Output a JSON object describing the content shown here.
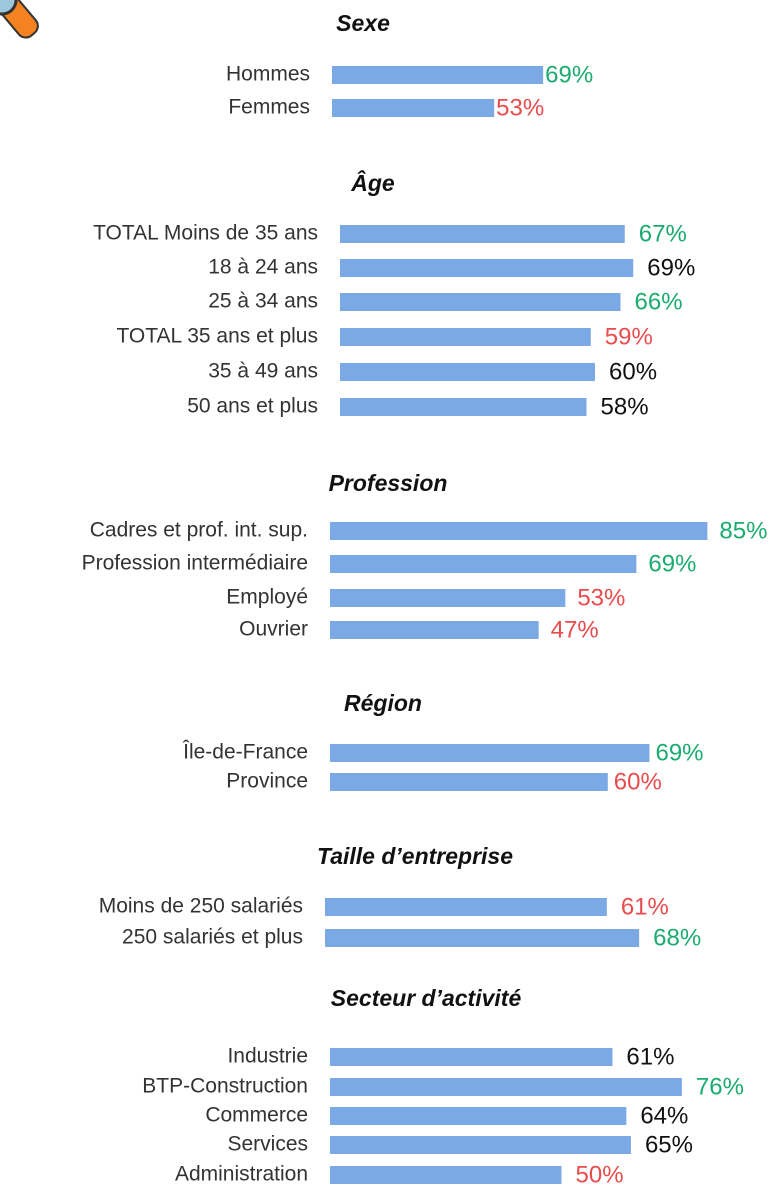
{
  "chart_data": [
    {
      "type": "bar",
      "title": "Sexe",
      "categories": [
        "Hommes",
        "Femmes"
      ],
      "values": [
        69,
        53
      ],
      "value_labels": [
        "69%",
        "53%"
      ],
      "color": "#7aa9e6",
      "label_colors": [
        "#1aab6f",
        "#e84c4c"
      ]
    },
    {
      "type": "bar",
      "title": "Âge",
      "categories": [
        "TOTAL Moins de 35 ans",
        "18 à 24 ans",
        "25 à 34 ans",
        "TOTAL 35 ans et plus",
        "35 à 49 ans",
        "50 ans et plus"
      ],
      "values": [
        67,
        69,
        66,
        59,
        60,
        58
      ],
      "value_labels": [
        "67%",
        "69%",
        "66%",
        "59%",
        "60%",
        "58%"
      ],
      "color": "#7aa9e6",
      "label_colors": [
        "#1aab6f",
        "#111111",
        "#1aab6f",
        "#e84c4c",
        "#111111",
        "#111111"
      ]
    },
    {
      "type": "bar",
      "title": "Profession",
      "categories": [
        "Cadres et prof. int. sup.",
        "Profession intermédiaire",
        "Employé",
        "Ouvrier"
      ],
      "values": [
        85,
        69,
        53,
        47
      ],
      "value_labels": [
        "85%",
        "69%",
        "53%",
        "47%"
      ],
      "color": "#7aa9e6",
      "label_colors": [
        "#1aab6f",
        "#1aab6f",
        "#e84c4c",
        "#e84c4c"
      ]
    },
    {
      "type": "bar",
      "title": "Région",
      "categories": [
        "Île-de-France",
        "Province"
      ],
      "values": [
        69,
        60
      ],
      "value_labels": [
        "69%",
        "60%"
      ],
      "color": "#7aa9e6",
      "label_colors": [
        "#1aab6f",
        "#e84c4c"
      ]
    },
    {
      "type": "bar",
      "title": "Taille d’entreprise",
      "categories": [
        "Moins de 250 salariés",
        "250 salariés et plus"
      ],
      "values": [
        61,
        68
      ],
      "value_labels": [
        "61%",
        "68%"
      ],
      "color": "#7aa9e6",
      "label_colors": [
        "#e84c4c",
        "#1aab6f"
      ]
    },
    {
      "type": "bar",
      "title": "Secteur d’activité",
      "categories": [
        "Industrie",
        "BTP-Construction",
        "Commerce",
        "Services",
        "Administration"
      ],
      "values": [
        61,
        76,
        64,
        65,
        50
      ],
      "value_labels": [
        "61%",
        "76%",
        "64%",
        "65%",
        "50%"
      ],
      "color": "#7aa9e6",
      "label_colors": [
        "#111111",
        "#1aab6f",
        "#111111",
        "#111111",
        "#e84c4c"
      ]
    }
  ]
}
